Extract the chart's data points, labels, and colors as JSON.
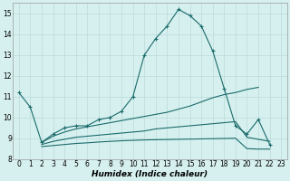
{
  "xlabel": "Humidex (Indice chaleur)",
  "background_color": "#d6f0ef",
  "grid_color": "#c0dede",
  "line_color": "#1a6b6b",
  "x_min": -0.5,
  "x_max": 23.5,
  "y_min": 8,
  "y_max": 15.5,
  "x_ticks": [
    0,
    1,
    2,
    3,
    4,
    5,
    6,
    7,
    8,
    9,
    10,
    11,
    12,
    13,
    14,
    15,
    16,
    17,
    18,
    19,
    20,
    21,
    22,
    23
  ],
  "y_ticks": [
    8,
    9,
    10,
    11,
    12,
    13,
    14,
    15
  ],
  "series": [
    {
      "x": [
        0,
        1,
        2,
        3,
        4,
        5,
        6,
        7,
        8,
        9,
        10,
        11,
        12,
        13,
        14,
        15,
        16,
        17,
        18,
        19,
        20,
        21,
        22
      ],
      "y": [
        11.2,
        10.5,
        8.8,
        9.2,
        9.5,
        9.6,
        9.6,
        9.9,
        10.0,
        10.3,
        11.0,
        13.0,
        13.8,
        14.4,
        15.2,
        14.9,
        14.4,
        13.2,
        11.4,
        9.6,
        9.2,
        9.9,
        8.7
      ],
      "has_markers": true
    },
    {
      "x": [
        2,
        3,
        4,
        5,
        6,
        7,
        8,
        9,
        10,
        11,
        12,
        13,
        14,
        15,
        16,
        17,
        18,
        19,
        20,
        21
      ],
      "y": [
        8.8,
        9.1,
        9.3,
        9.45,
        9.55,
        9.65,
        9.75,
        9.85,
        9.95,
        10.05,
        10.15,
        10.25,
        10.4,
        10.55,
        10.75,
        10.95,
        11.1,
        11.2,
        11.35,
        11.45
      ],
      "has_markers": false
    },
    {
      "x": [
        2,
        3,
        4,
        5,
        6,
        7,
        8,
        9,
        10,
        11,
        12,
        13,
        14,
        15,
        16,
        17,
        18,
        19,
        20,
        21,
        22
      ],
      "y": [
        8.7,
        8.85,
        8.95,
        9.05,
        9.1,
        9.15,
        9.2,
        9.25,
        9.3,
        9.35,
        9.45,
        9.5,
        9.55,
        9.6,
        9.65,
        9.7,
        9.75,
        9.8,
        9.05,
        8.95,
        8.85
      ],
      "has_markers": false
    },
    {
      "x": [
        2,
        3,
        4,
        5,
        6,
        7,
        8,
        9,
        10,
        11,
        12,
        13,
        14,
        15,
        16,
        17,
        18,
        19,
        20,
        21,
        22
      ],
      "y": [
        8.6,
        8.65,
        8.7,
        8.75,
        8.78,
        8.82,
        8.85,
        8.88,
        8.9,
        8.92,
        8.93,
        8.94,
        8.95,
        8.96,
        8.97,
        8.98,
        8.99,
        9.0,
        8.5,
        8.48,
        8.48
      ],
      "has_markers": false
    }
  ]
}
